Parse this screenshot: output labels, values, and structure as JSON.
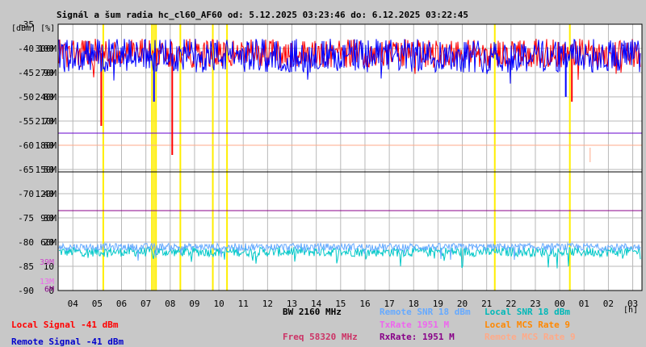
{
  "title": "Signál a šum radia hc_cl60_AF60 od: 5.12.2025 03:23:46 do: 6.12.2025 03:22:45",
  "axis_units": {
    "dbm_pct": "[dBm] [%]",
    "x_unit": "[h]"
  },
  "left_axis": {
    "dbm": [
      "-35",
      "-40",
      "-45",
      "-50",
      "-55",
      "-60",
      "-65",
      "-70",
      "-75",
      "-80",
      "-85",
      "-90"
    ],
    "pct": [
      "",
      "100",
      "90",
      "80",
      "70",
      "60",
      "50",
      "40",
      "30",
      "20",
      "10",
      "0"
    ],
    "rate": [
      "",
      "300M",
      "270M",
      "240M",
      "210M",
      "180M",
      "150M",
      "120M",
      "90M",
      "60M",
      "39M",
      "13M",
      "6M"
    ]
  },
  "x_ticks": [
    "04",
    "05",
    "06",
    "07",
    "08",
    "09",
    "10",
    "11",
    "12",
    "13",
    "14",
    "15",
    "16",
    "17",
    "18",
    "19",
    "20",
    "21",
    "22",
    "23",
    "00",
    "01",
    "02",
    "03"
  ],
  "legend": {
    "local_signal": "Local Signal -41 dBm",
    "remote_signal": "Remote Signal -41 dBm",
    "bw": "BW 2160 MHz",
    "freq": "Freq 58320 MHz",
    "remote_snr": "Remote SNR 18 dBm",
    "txrate": "TxRate 1951 M",
    "rxrate": "RxRate: 1951 M",
    "local_snr": "Local SNR 18 dBm",
    "local_mcs": "Local MCS Rate 9",
    "remote_mcs": "Remote MCS Rate 9"
  },
  "colors": {
    "background": "#c8c8c8",
    "plot_bg": "#ffffff",
    "local_signal": "#ff0000",
    "remote_signal": "#0000ff",
    "remote_snr": "#66aaff",
    "local_snr": "#00c8c8",
    "txrate": "#ee66ee",
    "rxrate": "#880088",
    "local_mcs": "#ff8800",
    "remote_mcs": "#ffaa88",
    "freq": "#cc3366",
    "yellow_marks": "#ffee00"
  },
  "chart_data": {
    "type": "line",
    "title": "Signál a šum radia hc_cl60_AF60 od: 5.12.2025 03:23:46 do: 6.12.2025 03:22:45",
    "x_range_hours": [
      "5.12.2025 03:23:46",
      "6.12.2025 03:22:45"
    ],
    "ylim_dbm": [
      -90,
      -35
    ],
    "grid": true,
    "series": [
      {
        "name": "Local Signal",
        "color": "#ff0000",
        "typical_dbm": -41,
        "band_dbm": [
          -44,
          -38
        ],
        "dips": [
          {
            "hour": "05:10",
            "dbm": -56
          },
          {
            "hour": "08:05",
            "dbm": -62
          },
          {
            "hour": "00:30",
            "dbm": -51
          }
        ]
      },
      {
        "name": "Remote Signal",
        "color": "#0000ff",
        "typical_dbm": -41,
        "band_dbm": [
          -45,
          -38
        ],
        "dips": [
          {
            "hour": "07:20",
            "dbm": -51
          },
          {
            "hour": "00:15",
            "dbm": -50
          }
        ]
      },
      {
        "name": "Remote SNR",
        "color": "#66aaff",
        "typical_dbm": -81
      },
      {
        "name": "Local SNR",
        "color": "#00c8c8",
        "typical_dbm": -82
      }
    ],
    "reference_lines_dbm": [
      {
        "color": "#6600cc",
        "dbm": -57.5
      },
      {
        "color": "#ffaa88",
        "dbm": -60
      },
      {
        "color": "#000000",
        "dbm": -65.5
      },
      {
        "color": "#880088",
        "dbm": -73.5
      }
    ],
    "yellow_markers_hour": [
      "05:15",
      "07:15",
      "07:20",
      "07:25",
      "08:25",
      "09:45",
      "10:20",
      "21:20",
      "00:25"
    ]
  }
}
